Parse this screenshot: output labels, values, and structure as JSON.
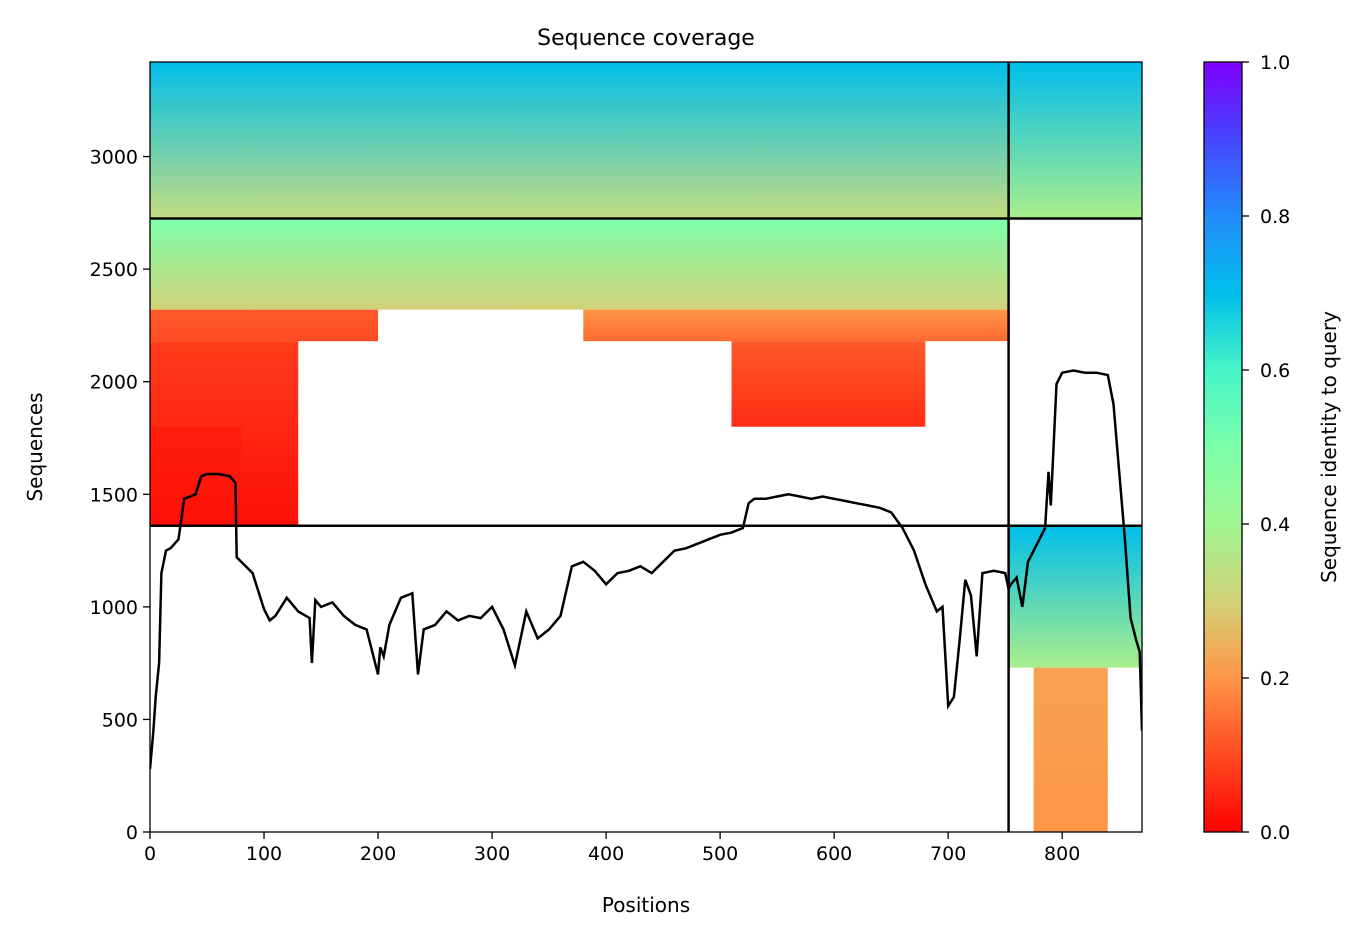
{
  "chart_data": {
    "type": "heatmap",
    "title": "Sequence coverage",
    "xlabel": "Positions",
    "ylabel": "Sequences",
    "xlim": [
      0,
      870
    ],
    "ylim": [
      0,
      3420
    ],
    "x_ticks": [
      0,
      100,
      200,
      300,
      400,
      500,
      600,
      700,
      800
    ],
    "y_ticks": [
      0,
      500,
      1000,
      1500,
      2000,
      2500,
      3000
    ],
    "grid": false,
    "colorbar": {
      "label": "Sequence identity to query",
      "min": 0.0,
      "max": 1.0,
      "ticks": [
        0.0,
        0.2,
        0.4,
        0.6,
        0.8,
        1.0
      ],
      "colormap": "rainbow_r"
    },
    "divider_x": [
      753
    ],
    "divider_y": [
      2725,
      1360
    ],
    "coverage_blocks": [
      {
        "x0": 0,
        "x1": 753,
        "y0": 2725,
        "y1": 3420,
        "id_top": 0.7,
        "id_bottom": 0.33
      },
      {
        "x0": 0,
        "x1": 753,
        "y0": 2320,
        "y1": 2725,
        "id_top": 0.5,
        "id_bottom": 0.3
      },
      {
        "x0": 380,
        "x1": 753,
        "y0": 2180,
        "y1": 2320,
        "id_top": 0.2,
        "id_bottom": 0.14
      },
      {
        "x0": 0,
        "x1": 200,
        "y0": 2180,
        "y1": 2320,
        "id_top": 0.12,
        "id_bottom": 0.1
      },
      {
        "x0": 0,
        "x1": 130,
        "y0": 1360,
        "y1": 2180,
        "id_top": 0.08,
        "id_bottom": 0.02
      },
      {
        "x0": 0,
        "x1": 80,
        "y0": 1360,
        "y1": 1800,
        "id_top": 0.04,
        "id_bottom": 0.02
      },
      {
        "x0": 510,
        "x1": 680,
        "y0": 1800,
        "y1": 2180,
        "id_top": 0.12,
        "id_bottom": 0.06
      },
      {
        "x0": 753,
        "x1": 870,
        "y0": 2725,
        "y1": 3420,
        "id_top": 0.7,
        "id_bottom": 0.38
      },
      {
        "x0": 753,
        "x1": 870,
        "y0": 730,
        "y1": 1360,
        "id_top": 0.7,
        "id_bottom": 0.38
      },
      {
        "x0": 775,
        "x1": 840,
        "y0": 0,
        "y1": 730,
        "id_top": 0.22,
        "id_bottom": 0.2
      }
    ],
    "coverage_line": {
      "x": [
        0,
        3,
        5,
        8,
        10,
        14,
        18,
        25,
        30,
        40,
        45,
        50,
        60,
        70,
        75,
        76,
        80,
        90,
        100,
        105,
        110,
        120,
        130,
        140,
        142,
        145,
        150,
        160,
        170,
        180,
        190,
        200,
        202,
        205,
        210,
        220,
        230,
        235,
        240,
        250,
        260,
        270,
        280,
        290,
        300,
        310,
        320,
        330,
        340,
        350,
        360,
        370,
        380,
        390,
        400,
        410,
        420,
        430,
        440,
        450,
        460,
        470,
        480,
        490,
        500,
        510,
        520,
        525,
        530,
        540,
        550,
        560,
        570,
        580,
        590,
        600,
        610,
        620,
        630,
        640,
        650,
        660,
        670,
        680,
        690,
        695,
        700,
        705,
        710,
        715,
        720,
        725,
        730,
        740,
        750,
        753,
        755,
        760,
        765,
        770,
        775,
        780,
        785,
        788,
        790,
        795,
        800,
        810,
        820,
        830,
        840,
        845,
        850,
        855,
        860,
        865,
        868,
        870
      ],
      "y": [
        280,
        450,
        600,
        750,
        1150,
        1250,
        1260,
        1300,
        1480,
        1500,
        1580,
        1590,
        1590,
        1580,
        1550,
        1220,
        1200,
        1150,
        990,
        940,
        960,
        1040,
        980,
        950,
        750,
        1030,
        1000,
        1020,
        960,
        920,
        900,
        700,
        820,
        780,
        920,
        1040,
        1060,
        700,
        900,
        920,
        980,
        940,
        960,
        950,
        1000,
        900,
        740,
        980,
        860,
        900,
        960,
        1180,
        1200,
        1160,
        1100,
        1150,
        1160,
        1180,
        1150,
        1200,
        1250,
        1260,
        1280,
        1300,
        1320,
        1330,
        1350,
        1460,
        1480,
        1480,
        1490,
        1500,
        1490,
        1480,
        1490,
        1480,
        1470,
        1460,
        1450,
        1440,
        1420,
        1350,
        1250,
        1100,
        980,
        1000,
        560,
        600,
        850,
        1120,
        1050,
        780,
        1150,
        1160,
        1150,
        1080,
        1100,
        1130,
        1000,
        1200,
        1250,
        1300,
        1350,
        1600,
        1450,
        1990,
        2040,
        2050,
        2040,
        2040,
        2030,
        1900,
        1600,
        1300,
        950,
        850,
        800,
        450
      ]
    }
  }
}
